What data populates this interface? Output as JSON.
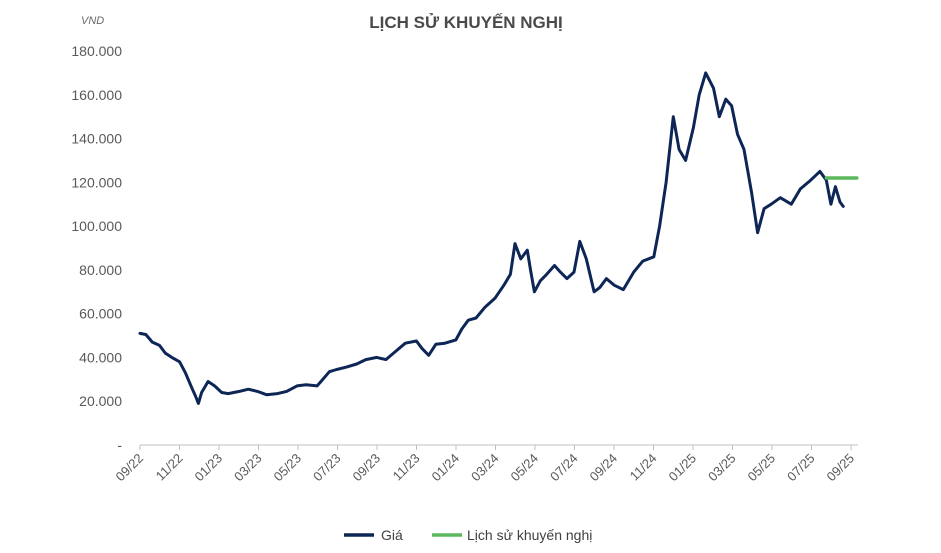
{
  "chart_data": {
    "type": "line",
    "title": "LỊCH SỬ KHUYẾN NGHỊ",
    "unit_label": "VND",
    "y_ticks": [
      "-",
      "20.000",
      "40.000",
      "60.000",
      "80.000",
      "100.000",
      "120.000",
      "140.000",
      "160.000",
      "180.000"
    ],
    "ylim": [
      0,
      180000
    ],
    "x_ticks": [
      "09/22",
      "11/22",
      "01/23",
      "03/23",
      "05/23",
      "07/23",
      "09/23",
      "11/23",
      "01/24",
      "03/24",
      "05/24",
      "07/24",
      "09/24",
      "11/24",
      "01/25",
      "03/25",
      "05/25",
      "07/25",
      "09/25"
    ],
    "grid": false,
    "legend_position": "bottom",
    "series": [
      {
        "name": "Giá",
        "color": "#0d2656",
        "points": [
          [
            "2022-09-01",
            51000
          ],
          [
            "2022-09-10",
            50500
          ],
          [
            "2022-09-20",
            47000
          ],
          [
            "2022-10-01",
            45500
          ],
          [
            "2022-10-10",
            42000
          ],
          [
            "2022-10-20",
            40000
          ],
          [
            "2022-11-01",
            38000
          ],
          [
            "2022-11-10",
            33000
          ],
          [
            "2022-11-20",
            26000
          ],
          [
            "2022-11-26",
            22000
          ],
          [
            "2022-11-30",
            19000
          ],
          [
            "2022-12-05",
            24000
          ],
          [
            "2022-12-15",
            29000
          ],
          [
            "2022-12-25",
            27000
          ],
          [
            "2023-01-05",
            24000
          ],
          [
            "2023-01-15",
            23500
          ],
          [
            "2023-02-01",
            24500
          ],
          [
            "2023-02-15",
            25500
          ],
          [
            "2023-03-01",
            24500
          ],
          [
            "2023-03-15",
            23000
          ],
          [
            "2023-04-01",
            23500
          ],
          [
            "2023-04-15",
            24500
          ],
          [
            "2023-05-01",
            27000
          ],
          [
            "2023-05-15",
            27500
          ],
          [
            "2023-06-01",
            27000
          ],
          [
            "2023-06-10",
            30000
          ],
          [
            "2023-06-20",
            33500
          ],
          [
            "2023-07-01",
            34500
          ],
          [
            "2023-07-15",
            35500
          ],
          [
            "2023-08-01",
            37000
          ],
          [
            "2023-08-15",
            39000
          ],
          [
            "2023-09-01",
            40000
          ],
          [
            "2023-09-15",
            39000
          ],
          [
            "2023-10-01",
            43000
          ],
          [
            "2023-10-15",
            46500
          ],
          [
            "2023-11-01",
            47500
          ],
          [
            "2023-11-10",
            44000
          ],
          [
            "2023-11-20",
            41000
          ],
          [
            "2023-12-01",
            46000
          ],
          [
            "2023-12-15",
            46500
          ],
          [
            "2024-01-01",
            48000
          ],
          [
            "2024-01-10",
            53000
          ],
          [
            "2024-01-20",
            57000
          ],
          [
            "2024-02-01",
            58000
          ],
          [
            "2024-02-15",
            63000
          ],
          [
            "2024-03-01",
            67000
          ],
          [
            "2024-03-15",
            73000
          ],
          [
            "2024-03-25",
            78000
          ],
          [
            "2024-04-01",
            92000
          ],
          [
            "2024-04-10",
            85000
          ],
          [
            "2024-04-20",
            89000
          ],
          [
            "2024-04-25",
            80000
          ],
          [
            "2024-05-01",
            70000
          ],
          [
            "2024-05-10",
            75000
          ],
          [
            "2024-05-20",
            78000
          ],
          [
            "2024-06-01",
            82000
          ],
          [
            "2024-06-10",
            79000
          ],
          [
            "2024-06-20",
            76000
          ],
          [
            "2024-07-01",
            79000
          ],
          [
            "2024-07-10",
            93000
          ],
          [
            "2024-07-20",
            85000
          ],
          [
            "2024-08-01",
            70000
          ],
          [
            "2024-08-10",
            72000
          ],
          [
            "2024-08-20",
            76000
          ],
          [
            "2024-09-01",
            73000
          ],
          [
            "2024-09-15",
            71000
          ],
          [
            "2024-10-01",
            79000
          ],
          [
            "2024-10-15",
            84000
          ],
          [
            "2024-11-01",
            86000
          ],
          [
            "2024-11-10",
            100000
          ],
          [
            "2024-11-20",
            120000
          ],
          [
            "2024-12-01",
            150000
          ],
          [
            "2024-12-10",
            135000
          ],
          [
            "2024-12-20",
            130000
          ],
          [
            "2025-01-01",
            145000
          ],
          [
            "2025-01-10",
            160000
          ],
          [
            "2025-01-20",
            170000
          ],
          [
            "2025-02-01",
            163000
          ],
          [
            "2025-02-10",
            150000
          ],
          [
            "2025-02-20",
            158000
          ],
          [
            "2025-03-01",
            155000
          ],
          [
            "2025-03-10",
            142000
          ],
          [
            "2025-03-20",
            135000
          ],
          [
            "2025-04-01",
            115000
          ],
          [
            "2025-04-10",
            97000
          ],
          [
            "2025-04-20",
            108000
          ],
          [
            "2025-05-01",
            110000
          ],
          [
            "2025-05-15",
            113000
          ],
          [
            "2025-06-01",
            110000
          ],
          [
            "2025-06-15",
            117000
          ],
          [
            "2025-07-01",
            121000
          ],
          [
            "2025-07-15",
            125000
          ],
          [
            "2025-07-25",
            121000
          ],
          [
            "2025-08-01",
            110000
          ],
          [
            "2025-08-08",
            118000
          ],
          [
            "2025-08-15",
            111000
          ],
          [
            "2025-08-20",
            109000
          ]
        ]
      },
      {
        "name": "Lịch sử khuyến nghị",
        "color": "#5cb85c",
        "points": [
          [
            "2025-07-25",
            122000
          ],
          [
            "2025-09-10",
            122000
          ]
        ]
      }
    ]
  }
}
